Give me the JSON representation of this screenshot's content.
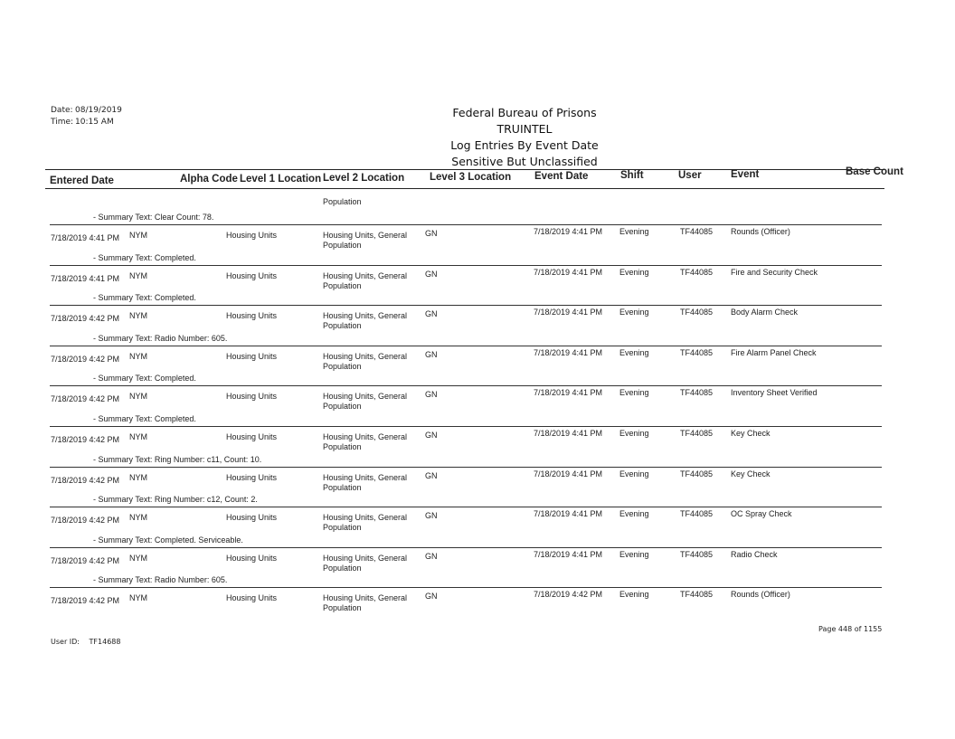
{
  "meta": {
    "date_label": "Date:",
    "date": "08/19/2019",
    "time_label": "Time:",
    "time": "10:15 AM"
  },
  "title": {
    "line1": "Federal Bureau of Prisons",
    "line2": "TRUINTEL",
    "line3": "Log Entries By Event Date",
    "line4": "Sensitive But Unclassified"
  },
  "columns": [
    "Entered Date",
    "Alpha Code",
    "Level 1 Location",
    "Level 2 Location",
    "Level 3 Location",
    "Event Date",
    "Shift",
    "User",
    "Event",
    "Base Count"
  ],
  "carryover": "Population",
  "entries": [
    {
      "summary": "- Summary Text: Clear Count: 78.",
      "entered": "7/18/2019 4:41 PM",
      "alpha": "NYM",
      "l1": "Housing Units",
      "l2a": "Housing Units, General",
      "l2b": "Population",
      "l3": "GN",
      "event_date": "7/18/2019 4:41 PM",
      "shift": "Evening",
      "user": "TF44085",
      "event": "Rounds (Officer)"
    },
    {
      "summary": "- Summary Text: Completed.",
      "entered": "7/18/2019 4:41 PM",
      "alpha": "NYM",
      "l1": "Housing Units",
      "l2a": "Housing Units, General",
      "l2b": "Population",
      "l3": "GN",
      "event_date": "7/18/2019 4:41 PM",
      "shift": "Evening",
      "user": "TF44085",
      "event": "Fire and Security Check"
    },
    {
      "summary": "- Summary Text: Completed.",
      "entered": "7/18/2019 4:42 PM",
      "alpha": "NYM",
      "l1": "Housing Units",
      "l2a": "Housing Units, General",
      "l2b": "Population",
      "l3": "GN",
      "event_date": "7/18/2019 4:41 PM",
      "shift": "Evening",
      "user": "TF44085",
      "event": "Body Alarm Check"
    },
    {
      "summary": "- Summary Text: Radio Number: 605.",
      "entered": "7/18/2019 4:42 PM",
      "alpha": "NYM",
      "l1": "Housing Units",
      "l2a": "Housing Units, General",
      "l2b": "Population",
      "l3": "GN",
      "event_date": "7/18/2019 4:41 PM",
      "shift": "Evening",
      "user": "TF44085",
      "event": "Fire Alarm Panel Check"
    },
    {
      "summary": "- Summary Text: Completed.",
      "entered": "7/18/2019 4:42 PM",
      "alpha": "NYM",
      "l1": "Housing Units",
      "l2a": "Housing Units, General",
      "l2b": "Population",
      "l3": "GN",
      "event_date": "7/18/2019 4:41 PM",
      "shift": "Evening",
      "user": "TF44085",
      "event": "Inventory Sheet Verified"
    },
    {
      "summary": "- Summary Text: Completed.",
      "entered": "7/18/2019 4:42 PM",
      "alpha": "NYM",
      "l1": "Housing Units",
      "l2a": "Housing Units, General",
      "l2b": "Population",
      "l3": "GN",
      "event_date": "7/18/2019 4:41 PM",
      "shift": "Evening",
      "user": "TF44085",
      "event": "Key Check"
    },
    {
      "summary": "- Summary Text: Ring Number: c11, Count: 10.",
      "entered": "7/18/2019 4:42 PM",
      "alpha": "NYM",
      "l1": "Housing Units",
      "l2a": "Housing Units, General",
      "l2b": "Population",
      "l3": "GN",
      "event_date": "7/18/2019 4:41 PM",
      "shift": "Evening",
      "user": "TF44085",
      "event": "Key Check"
    },
    {
      "summary": "- Summary Text: Ring Number: c12, Count: 2.",
      "entered": "7/18/2019 4:42 PM",
      "alpha": "NYM",
      "l1": "Housing Units",
      "l2a": "Housing Units, General",
      "l2b": "Population",
      "l3": "GN",
      "event_date": "7/18/2019 4:41 PM",
      "shift": "Evening",
      "user": "TF44085",
      "event": "OC Spray Check"
    },
    {
      "summary": "- Summary Text: Completed. Serviceable.",
      "entered": "7/18/2019 4:42 PM",
      "alpha": "NYM",
      "l1": "Housing Units",
      "l2a": "Housing Units, General",
      "l2b": "Population",
      "l3": "GN",
      "event_date": "7/18/2019 4:41 PM",
      "shift": "Evening",
      "user": "TF44085",
      "event": "Radio Check"
    },
    {
      "summary": "- Summary Text: Radio Number: 605.",
      "entered": "7/18/2019 4:42 PM",
      "alpha": "NYM",
      "l1": "Housing Units",
      "l2a": "Housing Units, General",
      "l2b": "Population",
      "l3": "GN",
      "event_date": "7/18/2019 4:42 PM",
      "shift": "Evening",
      "user": "TF44085",
      "event": "Rounds (Officer)"
    }
  ],
  "footer": {
    "user_label": "User ID:",
    "user_id": "TF14688",
    "page": "Page 448 of 1155"
  }
}
